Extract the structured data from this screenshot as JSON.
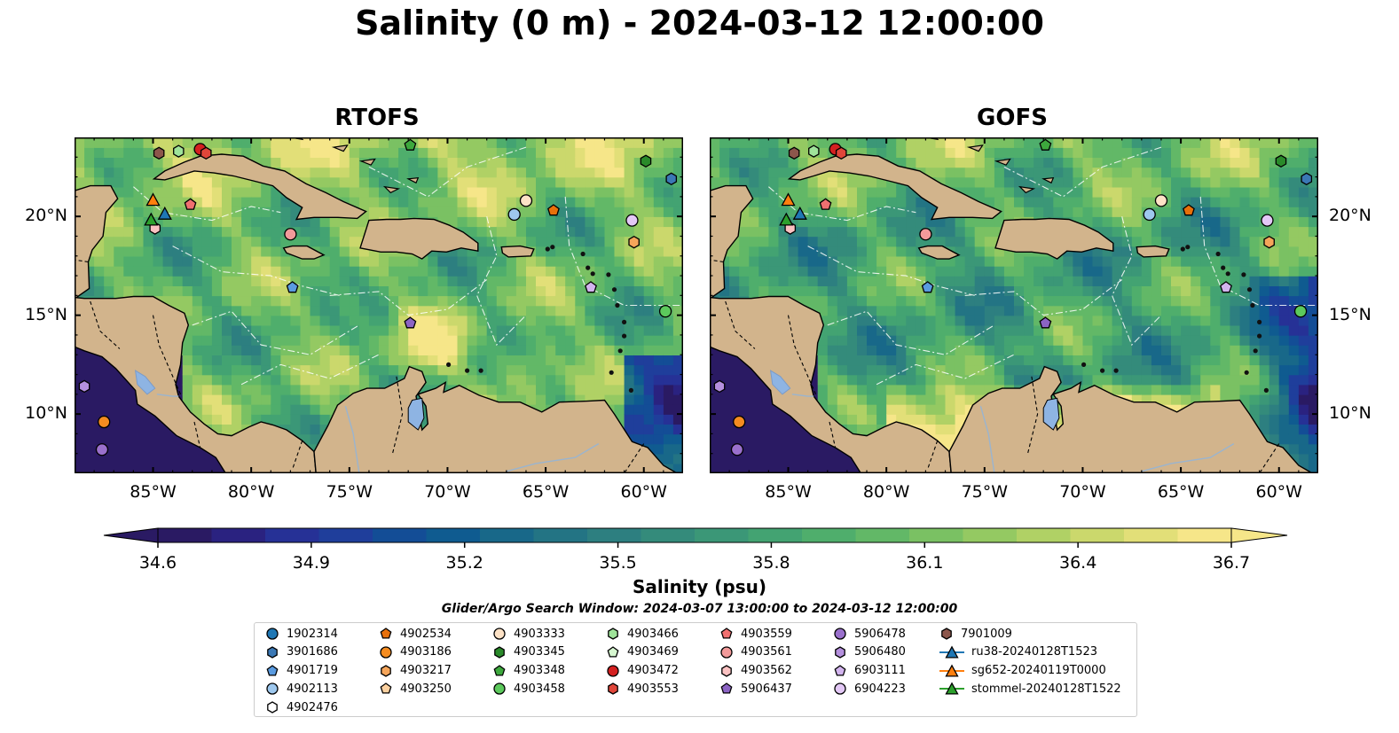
{
  "title": "Salinity (0 m) - 2024-03-12 12:00:00",
  "panels": [
    {
      "title": "RTOFS",
      "model": "rtofs"
    },
    {
      "title": "GOFS",
      "model": "gofs"
    }
  ],
  "map": {
    "lon_range": [
      -89,
      -58
    ],
    "lat_range": [
      7,
      24
    ],
    "lon_ticks": [
      "85°W",
      "80°W",
      "75°W",
      "70°W",
      "65°W",
      "60°W"
    ],
    "lat_ticks": [
      "20°N",
      "15°N",
      "10°N"
    ],
    "land_color": "#d2b48c",
    "lake_color": "#8eb4e3"
  },
  "colorbar": {
    "label": "Salinity (psu)",
    "min": 34.6,
    "max": 36.7,
    "ticks": [
      "34.6",
      "34.9",
      "35.2",
      "35.5",
      "35.8",
      "36.1",
      "36.4",
      "36.7"
    ],
    "colormap": "haline",
    "colors": [
      "#2a1a63",
      "#2a2280",
      "#263196",
      "#1f3e9b",
      "#134d96",
      "#0f5b90",
      "#186889",
      "#237484",
      "#2d7f80",
      "#348b7b",
      "#3b9777",
      "#43a372",
      "#4fae6c",
      "#62b867",
      "#7ac163",
      "#94c962",
      "#b0d165",
      "#cbd86c",
      "#e2df78",
      "#f6e689"
    ]
  },
  "search_window": "Glider/Argo Search Window: 2024-03-07 13:00:00 to 2024-03-12 12:00:00",
  "legend": [
    {
      "label": "1902314",
      "marker": "circle",
      "color": "#1f77b4"
    },
    {
      "label": "3901686",
      "marker": "hexagon",
      "color": "#3b78b5"
    },
    {
      "label": "4901719",
      "marker": "pentagon",
      "color": "#5a9be0"
    },
    {
      "label": "4902113",
      "marker": "circle",
      "color": "#9ec8ee"
    },
    {
      "label": "4902476",
      "marker": "hexagon",
      "color": "#ffffff"
    },
    {
      "label": "4902534",
      "marker": "pentagon",
      "color": "#e8700a"
    },
    {
      "label": "4903186",
      "marker": "circle",
      "color": "#f58c20"
    },
    {
      "label": "4903217",
      "marker": "hexagon",
      "color": "#f5a55a"
    },
    {
      "label": "4903250",
      "marker": "pentagon",
      "color": "#fcd1a0"
    },
    {
      "label": "4903333",
      "marker": "circle",
      "color": "#fde2c6"
    },
    {
      "label": "4903345",
      "marker": "hexagon",
      "color": "#2a8a2a"
    },
    {
      "label": "4903348",
      "marker": "pentagon",
      "color": "#3da83d"
    },
    {
      "label": "4903458",
      "marker": "circle",
      "color": "#5cc95c"
    },
    {
      "label": "4903466",
      "marker": "hexagon",
      "color": "#9fe39a"
    },
    {
      "label": "4903469",
      "marker": "pentagon",
      "color": "#d6f7d0"
    },
    {
      "label": "4903472",
      "marker": "circle",
      "color": "#d42020"
    },
    {
      "label": "4903553",
      "marker": "hexagon",
      "color": "#e0463a"
    },
    {
      "label": "4903559",
      "marker": "pentagon",
      "color": "#f07070"
    },
    {
      "label": "4903561",
      "marker": "circle",
      "color": "#f29a9a"
    },
    {
      "label": "4903562",
      "marker": "hexagon",
      "color": "#fbc2c2"
    },
    {
      "label": "5906437",
      "marker": "pentagon",
      "color": "#8c64c4"
    },
    {
      "label": "5906478",
      "marker": "circle",
      "color": "#9a70cc"
    },
    {
      "label": "5906480",
      "marker": "hexagon",
      "color": "#b590de"
    },
    {
      "label": "6903111",
      "marker": "pentagon",
      "color": "#d2b4ee"
    },
    {
      "label": "6904223",
      "marker": "circle",
      "color": "#e3c8f6"
    },
    {
      "label": "7901009",
      "marker": "hexagon",
      "color": "#8c564b"
    },
    {
      "label": "ru38-20240128T1523",
      "marker": "triangle-line",
      "color": "#1f77b4"
    },
    {
      "label": "sg652-20240119T0000",
      "marker": "triangle-line",
      "color": "#ff7f0e"
    },
    {
      "label": "stommel-20240128T1522",
      "marker": "triangle-line",
      "color": "#2ca02c"
    }
  ],
  "floats": [
    {
      "id": "7901009",
      "lon": -84.7,
      "lat": 23.2
    },
    {
      "id": "4903466",
      "lon": -83.7,
      "lat": 23.3
    },
    {
      "id": "4903472",
      "lon": -82.6,
      "lat": 23.4
    },
    {
      "id": "4903553",
      "lon": -82.3,
      "lat": 23.2
    },
    {
      "id": "4903348",
      "lon": -71.9,
      "lat": 23.6
    },
    {
      "id": "4903345",
      "lon": -59.9,
      "lat": 22.8
    },
    {
      "id": "3901686",
      "lon": -58.6,
      "lat": 21.9
    },
    {
      "id": "4903559",
      "lon": -83.1,
      "lat": 20.6
    },
    {
      "id": "4903333",
      "lon": -66.0,
      "lat": 20.8
    },
    {
      "id": "4902534",
      "lon": -64.6,
      "lat": 20.3
    },
    {
      "id": "4902113",
      "lon": -66.6,
      "lat": 20.1
    },
    {
      "id": "6904223",
      "lon": -60.6,
      "lat": 19.8
    },
    {
      "id": "4903217",
      "lon": -60.5,
      "lat": 18.7
    },
    {
      "id": "4903562",
      "lon": -84.9,
      "lat": 19.4
    },
    {
      "id": "4903561",
      "lon": -78.0,
      "lat": 19.1
    },
    {
      "id": "4901719",
      "lon": -77.9,
      "lat": 16.4
    },
    {
      "id": "6903111",
      "lon": -62.7,
      "lat": 16.4
    },
    {
      "id": "5906437",
      "lon": -71.9,
      "lat": 14.6
    },
    {
      "id": "4903458",
      "lon": -58.9,
      "lat": 15.2
    },
    {
      "id": "5906480",
      "lon": -88.5,
      "lat": 11.4
    },
    {
      "id": "4903186",
      "lon": -87.5,
      "lat": 9.6
    },
    {
      "id": "5906478",
      "lon": -87.6,
      "lat": 8.2
    }
  ],
  "gliders": [
    {
      "id": "sg652-20240119T0000",
      "lon": -85.0,
      "lat": 20.8
    },
    {
      "id": "ru38-20240128T1523",
      "lon": -84.4,
      "lat": 20.1
    },
    {
      "id": "stommel-20240128T1522",
      "lon": -85.1,
      "lat": 19.8
    }
  ]
}
